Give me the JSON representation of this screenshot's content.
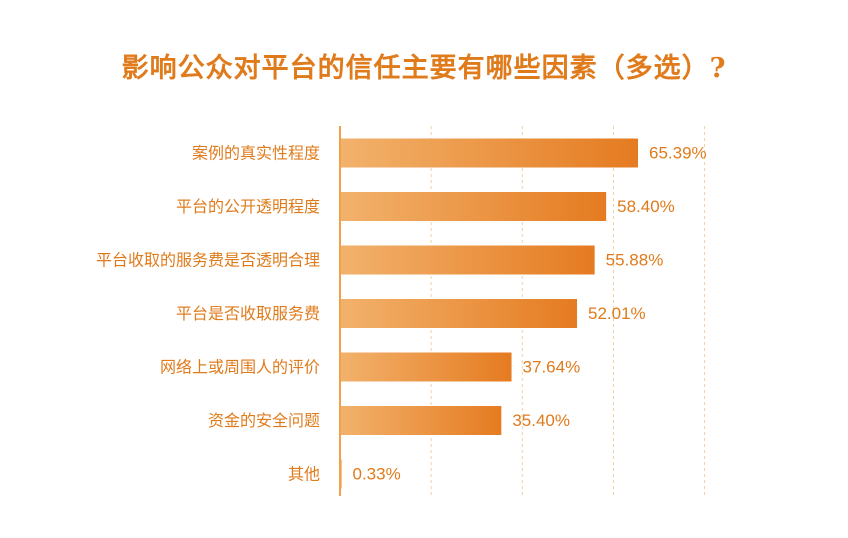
{
  "title": "影响公众对平台的信任主要有哪些因素（多选）?",
  "colors": {
    "title": "#e07b1c",
    "axis": "#f0a24a",
    "grid": "#f4cfa4",
    "label": "#e07b1c",
    "value": "#e07b1c",
    "bar_start": "#f2b26c",
    "bar_end": "#e57b21"
  },
  "chart_data": {
    "type": "bar",
    "orientation": "horizontal",
    "title": "影响公众对平台的信任主要有哪些因素（多选）?",
    "categories": [
      "案例的真实性程度",
      "平台的公开透明程度",
      "平台收取的服务费是否透明合理",
      "平台是否收取服务费",
      "网络上或周围人的评价",
      "资金的安全问题",
      "其他"
    ],
    "values": [
      65.39,
      58.4,
      55.88,
      52.01,
      37.64,
      35.4,
      0.33
    ],
    "value_labels": [
      "65.39%",
      "58.40%",
      "55.88%",
      "52.01%",
      "37.64%",
      "35.40%",
      "0.33%"
    ],
    "xlim": [
      0,
      80
    ],
    "grid": true,
    "legend": false
  }
}
